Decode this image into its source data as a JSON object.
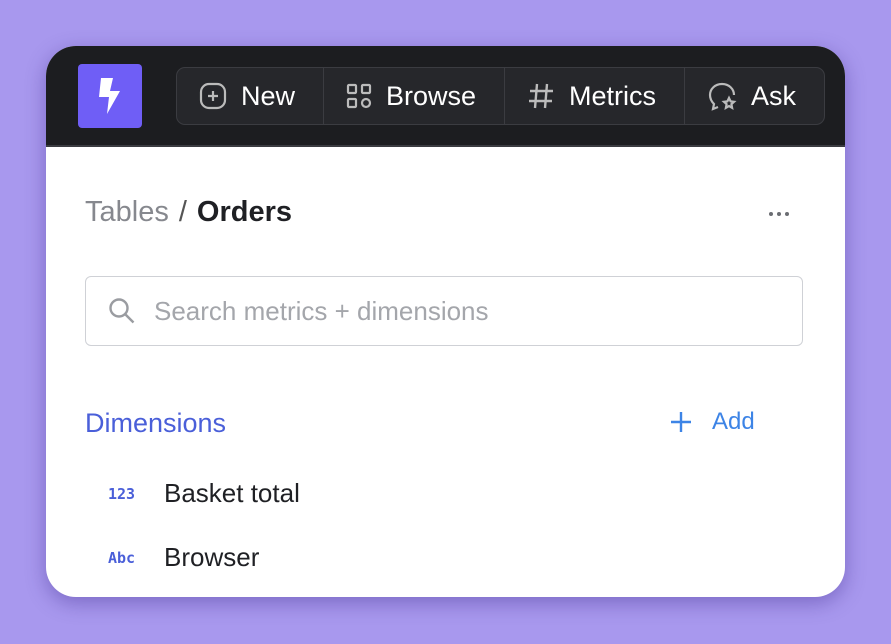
{
  "nav": {
    "items": [
      {
        "label": "New",
        "icon": "plus-square-icon"
      },
      {
        "label": "Browse",
        "icon": "grid-icon"
      },
      {
        "label": "Metrics",
        "icon": "hash-icon"
      },
      {
        "label": "Ask",
        "icon": "chat-star-icon"
      }
    ]
  },
  "breadcrumb": {
    "parent": "Tables",
    "separator": "/",
    "current": "Orders"
  },
  "search": {
    "placeholder": "Search metrics + dimensions"
  },
  "dimensions": {
    "title": "Dimensions",
    "add_label": "Add",
    "items": [
      {
        "type": "123",
        "label": "Basket total"
      },
      {
        "type": "Abc",
        "label": "Browser"
      }
    ]
  },
  "colors": {
    "brand": "#6f5ef6",
    "accent": "#4a5fd9",
    "link": "#3d84e6"
  }
}
